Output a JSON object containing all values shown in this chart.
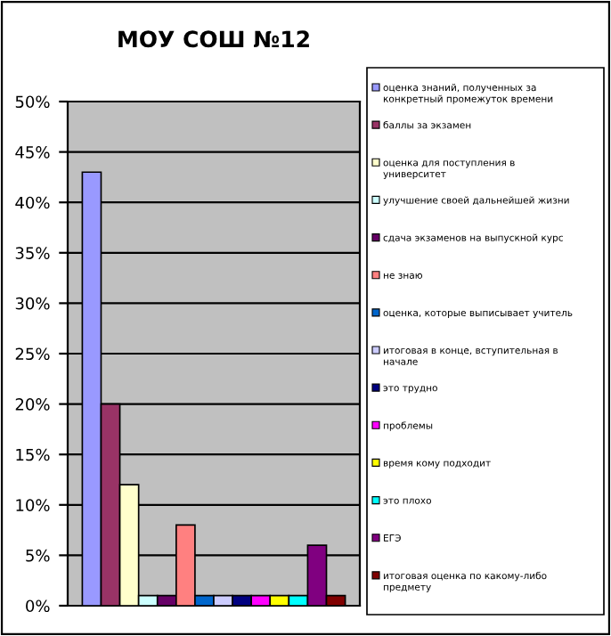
{
  "chart_data": {
    "type": "bar",
    "title": "МОУ СОШ №12",
    "categories": [
      null
    ],
    "series": [
      {
        "name": "оценка знаний, полученных за конкретный промежуток времени",
        "color": "#9999ff",
        "values": [
          43
        ]
      },
      {
        "name": "баллы за экзамен",
        "color": "#993366",
        "values": [
          20
        ]
      },
      {
        "name": "оценка для поступления в университет",
        "color": "#ffffcc",
        "values": [
          12
        ]
      },
      {
        "name": "улучшение своей дальнейшей жизни",
        "color": "#ccffff",
        "values": [
          1
        ]
      },
      {
        "name": "сдача экзаменов на выпускной курс",
        "color": "#660066",
        "values": [
          1
        ]
      },
      {
        "name": "не знаю",
        "color": "#ff8080",
        "values": [
          8
        ]
      },
      {
        "name": "оценка, которые выписывает учитель",
        "color": "#0066cc",
        "values": [
          1
        ]
      },
      {
        "name": "итоговая в конце, вступительная в начале",
        "color": "#ccccff",
        "values": [
          1
        ]
      },
      {
        "name": "это трудно",
        "color": "#000080",
        "values": [
          1
        ]
      },
      {
        "name": "проблемы",
        "color": "#ff00ff",
        "values": [
          1
        ]
      },
      {
        "name": "время кому подходит",
        "color": "#ffff00",
        "values": [
          1
        ]
      },
      {
        "name": "это плохо",
        "color": "#00ffff",
        "values": [
          1
        ]
      },
      {
        "name": "ЕГЭ",
        "color": "#800080",
        "values": [
          6
        ]
      },
      {
        "name": "итоговая оценка по какому-либо предмету",
        "color": "#800000",
        "values": [
          1
        ]
      }
    ],
    "ylim": [
      0,
      50
    ],
    "yticks": [
      {
        "value": 0,
        "label": "0%"
      },
      {
        "value": 5,
        "label": "5%"
      },
      {
        "value": 10,
        "label": "10%"
      },
      {
        "value": 15,
        "label": "15%"
      },
      {
        "value": 20,
        "label": "20%"
      },
      {
        "value": 25,
        "label": "25%"
      },
      {
        "value": 30,
        "label": "30%"
      },
      {
        "value": 35,
        "label": "35%"
      },
      {
        "value": 40,
        "label": "40%"
      },
      {
        "value": 45,
        "label": "45%"
      },
      {
        "value": 50,
        "label": "50%"
      }
    ],
    "grid": "y",
    "legend": "right"
  }
}
